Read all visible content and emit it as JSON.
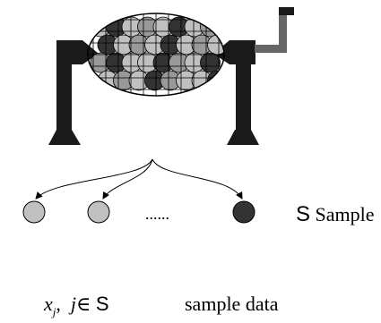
{
  "sample": {
    "set_symbol": "S",
    "label": "Sample",
    "ellipsis": "......"
  },
  "formula": {
    "x": "x",
    "subscript": "j",
    "separator": ",",
    "j": "j",
    "in": "∈",
    "set_symbol": "S"
  },
  "data_label": "sample data",
  "colors": {
    "machine": "#1a1a1a",
    "crank": "#666666",
    "ball_light": "#c0c0c0",
    "ball_mid": "#999999",
    "ball_dark": "#333333",
    "line": "#000000"
  },
  "lottery_balls": [
    "light",
    "dark",
    "light",
    "mid",
    "light",
    "dark",
    "light",
    "mid",
    "dark",
    "light",
    "mid",
    "light",
    "dark",
    "light",
    "mid",
    "light",
    "mid",
    "dark",
    "light",
    "light",
    "dark",
    "mid",
    "light",
    "dark",
    "light",
    "mid",
    "light",
    "dark",
    "mid",
    "light",
    "light",
    "dark"
  ],
  "sampled_balls": [
    "light",
    "light",
    "dark"
  ]
}
